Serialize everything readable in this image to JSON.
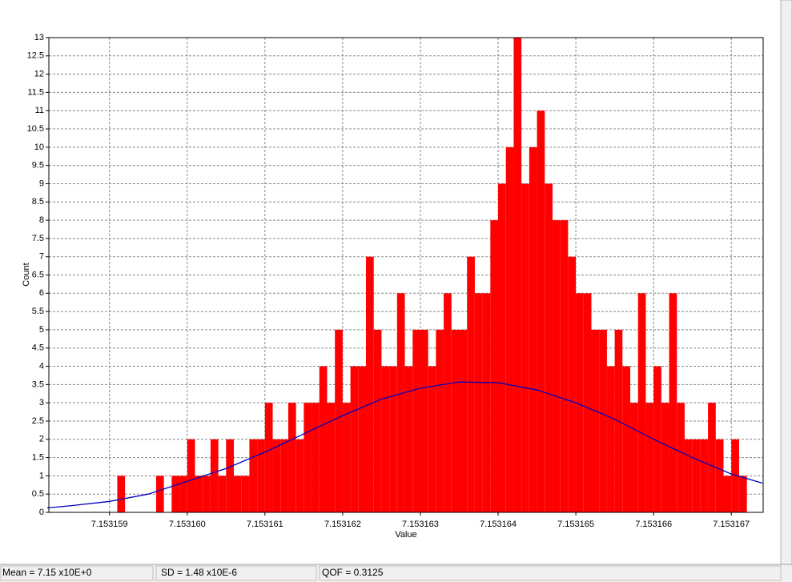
{
  "chart_data": {
    "type": "histogram",
    "x_label": "Value",
    "y_label": "Count",
    "color": "#ff0000",
    "bins": [
      7.1531582,
      7.1531583,
      7.1531584,
      7.1531585,
      7.1531586,
      7.1531587,
      7.1531588,
      7.1531589,
      7.153159,
      7.1531591,
      7.1531592,
      7.1531593,
      7.1531594,
      7.1531595,
      7.1531596,
      7.1531597,
      7.1531598,
      7.1531599,
      7.15316,
      7.1531601,
      7.1531602,
      7.1531603,
      7.1531604,
      7.1531605,
      7.1531606,
      7.1531607,
      7.1531608,
      7.1531609,
      7.153161,
      7.1531611,
      7.1531612,
      7.1531613,
      7.1531614,
      7.1531615,
      7.1531616,
      7.1531617,
      7.1531618,
      7.1531619,
      7.153162,
      7.1531621,
      7.1531622,
      7.1531623,
      7.1531624,
      7.1531625,
      7.1531626,
      7.1531627,
      7.1531628,
      7.1531629,
      7.153163,
      7.1531631,
      7.1531632,
      7.1531633,
      7.1531634,
      7.1531635,
      7.1531636,
      7.1531637,
      7.1531638,
      7.1531639,
      7.153164,
      7.1531641,
      7.1531642,
      7.1531643,
      7.1531644,
      7.1531645,
      7.1531646,
      7.1531647,
      7.1531648,
      7.1531649,
      7.153165,
      7.1531651,
      7.1531652,
      7.1531653,
      7.1531654,
      7.1531655,
      7.1531656,
      7.1531657,
      7.1531658,
      7.1531659,
      7.153166,
      7.1531661,
      7.1531662,
      7.1531663,
      7.1531664,
      7.1531665,
      7.1531666,
      7.1531667,
      7.1531668,
      7.1531669,
      7.153167,
      7.1531671,
      7.1531672,
      7.1531673,
      7.1531674
    ],
    "counts": [
      0,
      0,
      0,
      0,
      0,
      0,
      0,
      0,
      0,
      1,
      0,
      0,
      0,
      0,
      1,
      0,
      1,
      1,
      2,
      1,
      1,
      2,
      1,
      2,
      1,
      1,
      2,
      2,
      3,
      2,
      2,
      3,
      2,
      3,
      3,
      4,
      3,
      5,
      3,
      4,
      4,
      7,
      5,
      4,
      4,
      6,
      4,
      5,
      5,
      4,
      5,
      6,
      5,
      5,
      7,
      6,
      6,
      8,
      9,
      10,
      13,
      9,
      10,
      11,
      9,
      8,
      8,
      7,
      6,
      6,
      5,
      5,
      4,
      5,
      4,
      3,
      6,
      3,
      4,
      3,
      6,
      3,
      2,
      2,
      2,
      3,
      2,
      1,
      2,
      1,
      0,
      0
    ],
    "line": {
      "color": "#0000c0",
      "x": [
        7.1531582,
        7.1531585,
        7.153159,
        7.1531595,
        7.15316,
        7.1531605,
        7.153161,
        7.1531615,
        7.153162,
        7.1531625,
        7.153163,
        7.1531635,
        7.153164,
        7.1531645,
        7.153165,
        7.1531655,
        7.153166,
        7.1531665,
        7.153167,
        7.1531674
      ],
      "values": [
        0.12,
        0.18,
        0.3,
        0.5,
        0.85,
        1.2,
        1.65,
        2.15,
        2.65,
        3.1,
        3.4,
        3.57,
        3.55,
        3.35,
        3.0,
        2.55,
        2.0,
        1.5,
        1.05,
        0.8
      ]
    },
    "xlim": [
      7.15315822,
      7.15316741
    ],
    "xticks": [
      7.153159,
      {
        "value": 7.15316,
        "label": "7.153160"
      },
      7.153161,
      7.153162,
      7.153163,
      7.153164,
      7.153165,
      7.153166,
      7.153167
    ],
    "ylim": [
      0,
      13
    ],
    "yticks": [
      0,
      0.5,
      1,
      1.5,
      2,
      2.5,
      3,
      3.5,
      4,
      4.5,
      5,
      5.5,
      6,
      6.5,
      7,
      7.5,
      8,
      8.5,
      9,
      9.5,
      10,
      10.5,
      11,
      11.5,
      12,
      12.5,
      13
    ],
    "grid": true
  },
  "status_bar": [
    "Mean = 7.15 x10E+0",
    "SD = 1.48 x10E-6",
    "QOF = 0.3125"
  ]
}
